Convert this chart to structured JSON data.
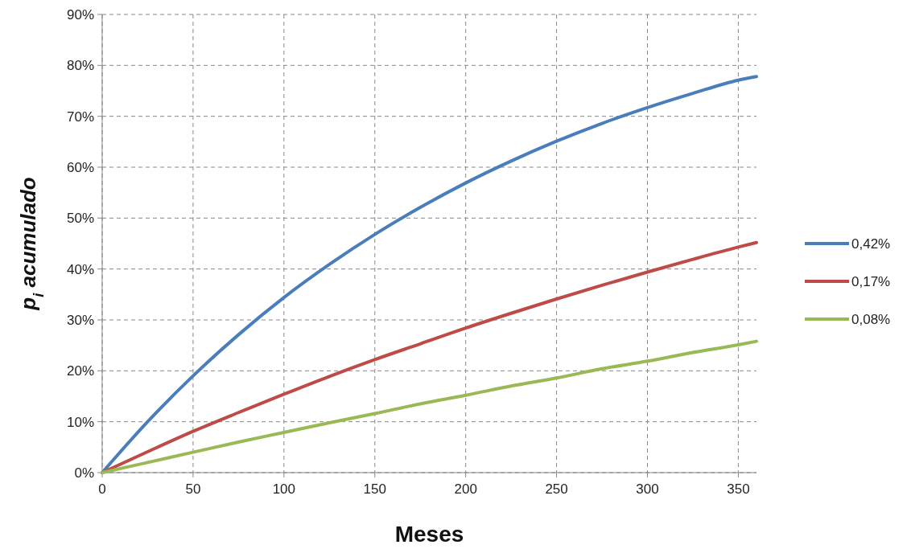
{
  "chart_data": {
    "type": "line",
    "xlabel": "Meses",
    "ylabel": "p$_{i}$ acumulado",
    "x": [
      0,
      25,
      50,
      75,
      100,
      125,
      150,
      175,
      200,
      225,
      250,
      275,
      300,
      325,
      350,
      360
    ],
    "series": [
      {
        "name": "0,42%",
        "color": "#4a7ebb",
        "values": [
          0,
          10.0,
          19.0,
          27.1,
          34.4,
          40.9,
          46.8,
          52.1,
          56.9,
          61.2,
          65.1,
          68.6,
          71.7,
          74.5,
          77.1,
          77.8
        ]
      },
      {
        "name": "0,17%",
        "color": "#be4b48",
        "values": [
          0,
          4.1,
          8.1,
          11.8,
          15.4,
          18.9,
          22.2,
          25.3,
          28.4,
          31.3,
          34.1,
          36.8,
          39.4,
          41.9,
          44.3,
          45.2
        ]
      },
      {
        "name": "0,08%",
        "color": "#98b954",
        "values": [
          0,
          2.0,
          4.0,
          6.0,
          7.9,
          9.8,
          11.6,
          13.5,
          15.2,
          17.0,
          18.6,
          20.4,
          21.9,
          23.6,
          25.1,
          25.8
        ]
      }
    ],
    "xlim": [
      0,
      360
    ],
    "xticks": [
      0,
      50,
      100,
      150,
      200,
      250,
      300,
      350
    ],
    "ylim": [
      0,
      90
    ],
    "yticks": [
      {
        "value": 0,
        "label": "0%"
      },
      {
        "value": 10,
        "label": "10%"
      },
      {
        "value": 20,
        "label": "20%"
      },
      {
        "value": 30,
        "label": "30%"
      },
      {
        "value": 40,
        "label": "40%"
      },
      {
        "value": 50,
        "label": "50%"
      },
      {
        "value": 60,
        "label": "60%"
      },
      {
        "value": 70,
        "label": "70%"
      },
      {
        "value": 80,
        "label": "80%"
      },
      {
        "value": 90,
        "label": "90%"
      }
    ],
    "grid": true,
    "legend": "right",
    "marker": "none",
    "line_style": "solid"
  }
}
